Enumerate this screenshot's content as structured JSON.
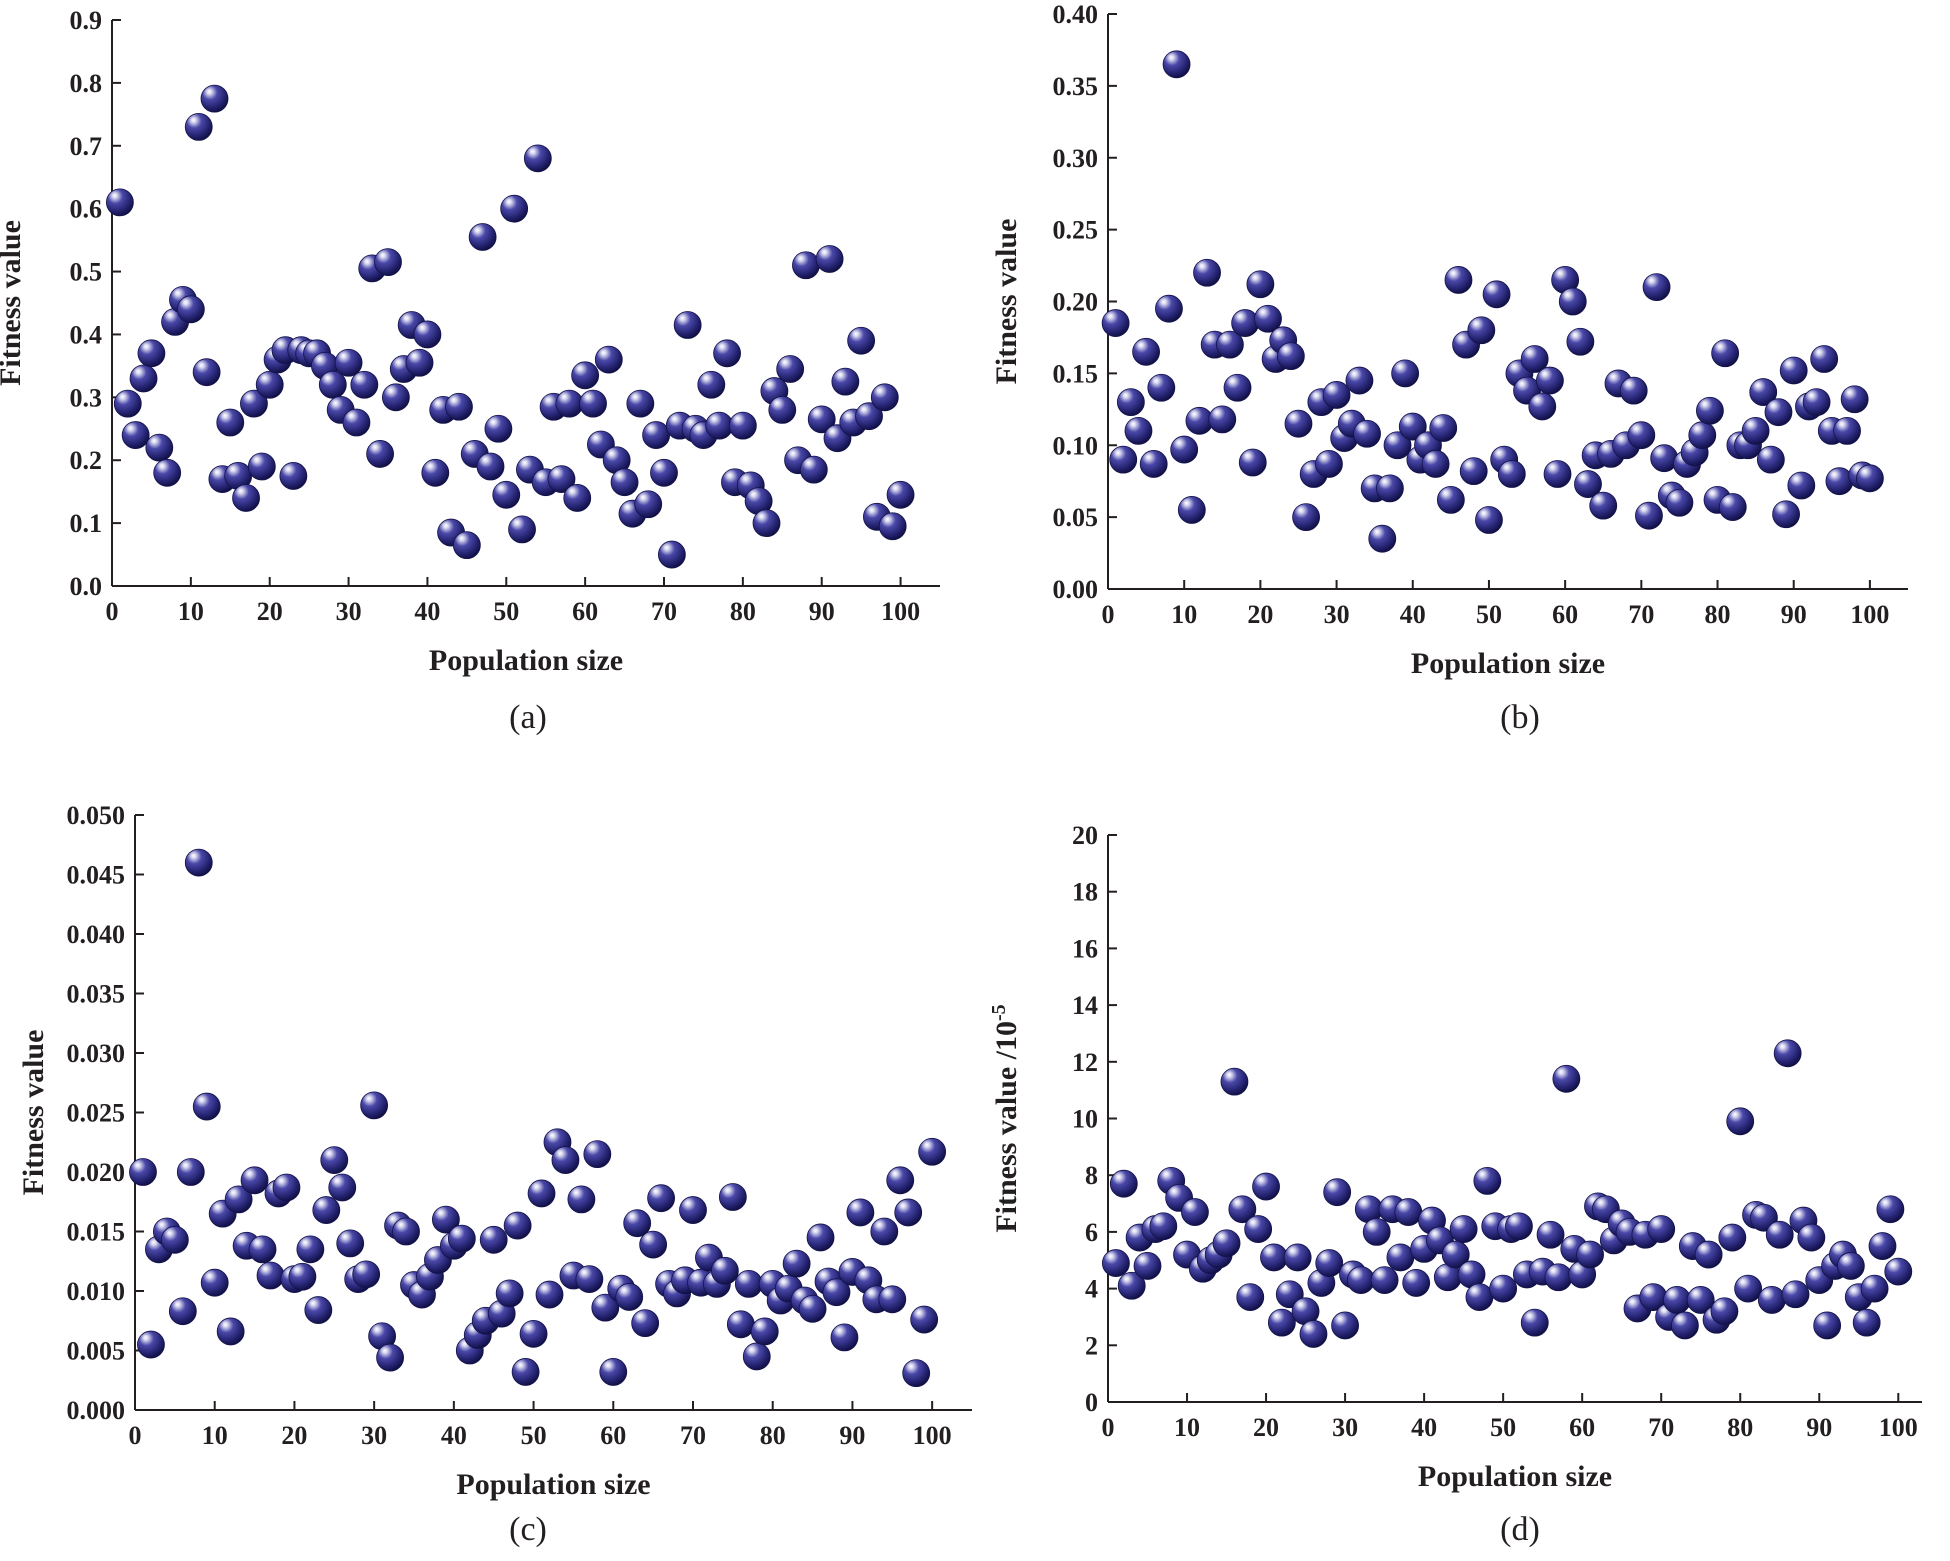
{
  "colors": {
    "marker": "#2b2a7a",
    "marker_highlight": "#ffffff",
    "axis": "#231f20"
  },
  "chart_data": [
    {
      "type": "scatter",
      "panel": "(a)",
      "xlabel": "Population size",
      "ylabel": "Fitness value",
      "xlim": [
        0,
        105
      ],
      "ylim": [
        0,
        0.9
      ],
      "xticks": [
        "0",
        "10",
        "20",
        "30",
        "40",
        "50",
        "60",
        "70",
        "80",
        "90",
        "100"
      ],
      "yticks": [
        "0.0",
        "0.1",
        "0.2",
        "0.3",
        "0.4",
        "0.5",
        "0.6",
        "0.7",
        "0.8",
        "0.9"
      ],
      "grid": false,
      "x": [
        1,
        2,
        3,
        4,
        5,
        6,
        7,
        8,
        9,
        10,
        11,
        12,
        13,
        14,
        15,
        16,
        17,
        18,
        19,
        20,
        21,
        22,
        23,
        24,
        25,
        26,
        27,
        28,
        29,
        30,
        31,
        32,
        33,
        34,
        35,
        36,
        37,
        38,
        39,
        40,
        41,
        42,
        43,
        44,
        45,
        46,
        47,
        48,
        49,
        50,
        51,
        52,
        53,
        54,
        55,
        56,
        57,
        58,
        59,
        60,
        61,
        62,
        63,
        64,
        65,
        66,
        67,
        68,
        69,
        70,
        71,
        72,
        73,
        74,
        75,
        76,
        77,
        78,
        79,
        80,
        81,
        82,
        83,
        84,
        85,
        86,
        87,
        88,
        89,
        90,
        91,
        92,
        93,
        94,
        95,
        96,
        97,
        98,
        99,
        100
      ],
      "y": [
        0.61,
        0.29,
        0.24,
        0.33,
        0.37,
        0.22,
        0.18,
        0.42,
        0.455,
        0.44,
        0.73,
        0.34,
        0.775,
        0.17,
        0.26,
        0.175,
        0.14,
        0.29,
        0.19,
        0.32,
        0.36,
        0.375,
        0.175,
        0.375,
        0.37,
        0.37,
        0.35,
        0.32,
        0.28,
        0.355,
        0.26,
        0.32,
        0.505,
        0.21,
        0.515,
        0.3,
        0.345,
        0.415,
        0.355,
        0.4,
        0.18,
        0.28,
        0.085,
        0.285,
        0.065,
        0.21,
        0.555,
        0.19,
        0.25,
        0.145,
        0.6,
        0.09,
        0.185,
        0.68,
        0.165,
        0.285,
        0.17,
        0.29,
        0.14,
        0.335,
        0.29,
        0.225,
        0.36,
        0.2,
        0.165,
        0.115,
        0.29,
        0.13,
        0.24,
        0.18,
        0.05,
        0.255,
        0.415,
        0.25,
        0.24,
        0.32,
        0.255,
        0.37,
        0.165,
        0.255,
        0.16,
        0.135,
        0.1,
        0.31,
        0.28,
        0.345,
        0.2,
        0.51,
        0.185,
        0.265,
        0.52,
        0.235,
        0.325,
        0.26,
        0.39,
        0.27,
        0.11,
        0.3,
        0.095,
        0.145
      ]
    },
    {
      "type": "scatter",
      "panel": "(b)",
      "xlabel": "Population size",
      "ylabel": "Fitness value",
      "xlim": [
        0,
        105
      ],
      "ylim": [
        0,
        0.4
      ],
      "xticks": [
        "0",
        "10",
        "20",
        "30",
        "40",
        "50",
        "60",
        "70",
        "80",
        "90",
        "100"
      ],
      "yticks": [
        "0.00",
        "0.05",
        "0.10",
        "0.15",
        "0.20",
        "0.25",
        "0.30",
        "0.35",
        "0.40"
      ],
      "grid": false,
      "x": [
        1,
        2,
        3,
        4,
        5,
        6,
        7,
        8,
        9,
        10,
        11,
        12,
        13,
        14,
        15,
        16,
        17,
        18,
        19,
        20,
        21,
        22,
        23,
        24,
        25,
        26,
        27,
        28,
        29,
        30,
        31,
        32,
        33,
        34,
        35,
        36,
        37,
        38,
        39,
        40,
        41,
        42,
        43,
        44,
        45,
        46,
        47,
        48,
        49,
        50,
        51,
        52,
        53,
        54,
        55,
        56,
        57,
        58,
        59,
        60,
        61,
        62,
        63,
        64,
        65,
        66,
        67,
        68,
        69,
        70,
        71,
        72,
        73,
        74,
        75,
        76,
        77,
        78,
        79,
        80,
        81,
        82,
        83,
        84,
        85,
        86,
        87,
        88,
        89,
        90,
        91,
        92,
        93,
        94,
        95,
        96,
        97,
        98,
        99,
        100
      ],
      "y": [
        0.185,
        0.09,
        0.13,
        0.11,
        0.165,
        0.087,
        0.14,
        0.195,
        0.365,
        0.097,
        0.055,
        0.117,
        0.22,
        0.17,
        0.118,
        0.17,
        0.14,
        0.185,
        0.088,
        0.212,
        0.188,
        0.16,
        0.173,
        0.162,
        0.115,
        0.05,
        0.08,
        0.13,
        0.087,
        0.135,
        0.105,
        0.115,
        0.145,
        0.108,
        0.07,
        0.035,
        0.07,
        0.1,
        0.15,
        0.113,
        0.09,
        0.1,
        0.087,
        0.112,
        0.062,
        0.215,
        0.17,
        0.082,
        0.18,
        0.048,
        0.205,
        0.09,
        0.08,
        0.15,
        0.138,
        0.16,
        0.127,
        0.145,
        0.08,
        0.215,
        0.2,
        0.172,
        0.073,
        0.093,
        0.058,
        0.094,
        0.143,
        0.1,
        0.138,
        0.107,
        0.051,
        0.21,
        0.091,
        0.065,
        0.06,
        0.087,
        0.095,
        0.107,
        0.124,
        0.062,
        0.164,
        0.057,
        0.1,
        0.1,
        0.11,
        0.137,
        0.09,
        0.123,
        0.052,
        0.152,
        0.072,
        0.127,
        0.13,
        0.16,
        0.11,
        0.075,
        0.11,
        0.132,
        0.079,
        0.077
      ]
    },
    {
      "type": "scatter",
      "panel": "(c)",
      "xlabel": "Population size",
      "ylabel": "Fitness value",
      "xlim": [
        0,
        105
      ],
      "ylim": [
        0,
        0.05
      ],
      "xticks": [
        "0",
        "10",
        "20",
        "30",
        "40",
        "50",
        "60",
        "70",
        "80",
        "90",
        "100"
      ],
      "yticks": [
        "0.000",
        "0.005",
        "0.010",
        "0.015",
        "0.020",
        "0.025",
        "0.030",
        "0.035",
        "0.040",
        "0.045",
        "0.050"
      ],
      "grid": false,
      "x": [
        1,
        2,
        3,
        4,
        5,
        6,
        7,
        8,
        9,
        10,
        11,
        12,
        13,
        14,
        15,
        16,
        17,
        18,
        19,
        20,
        21,
        22,
        23,
        24,
        25,
        26,
        27,
        28,
        29,
        30,
        31,
        32,
        33,
        34,
        35,
        36,
        37,
        38,
        39,
        40,
        41,
        42,
        43,
        44,
        45,
        46,
        47,
        48,
        49,
        50,
        51,
        52,
        53,
        54,
        55,
        56,
        57,
        58,
        59,
        60,
        61,
        62,
        63,
        64,
        65,
        66,
        67,
        68,
        69,
        70,
        71,
        72,
        73,
        74,
        75,
        76,
        77,
        78,
        79,
        80,
        81,
        82,
        83,
        84,
        85,
        86,
        87,
        88,
        89,
        90,
        91,
        92,
        93,
        94,
        95,
        96,
        97,
        98,
        99,
        100
      ],
      "y": [
        0.02,
        0.0055,
        0.0135,
        0.015,
        0.0143,
        0.0083,
        0.02,
        0.046,
        0.0255,
        0.0107,
        0.0165,
        0.0066,
        0.0177,
        0.0138,
        0.0193,
        0.0135,
        0.0113,
        0.0182,
        0.0187,
        0.011,
        0.0112,
        0.0135,
        0.0084,
        0.0168,
        0.021,
        0.0187,
        0.014,
        0.011,
        0.0114,
        0.0256,
        0.0062,
        0.0044,
        0.0155,
        0.015,
        0.0105,
        0.0097,
        0.0112,
        0.0126,
        0.016,
        0.0138,
        0.0144,
        0.005,
        0.0063,
        0.0075,
        0.0143,
        0.0081,
        0.0098,
        0.0155,
        0.0032,
        0.0064,
        0.0182,
        0.0097,
        0.0225,
        0.021,
        0.0113,
        0.0177,
        0.011,
        0.0215,
        0.0086,
        0.0032,
        0.0102,
        0.0095,
        0.0157,
        0.0073,
        0.0139,
        0.0178,
        0.0106,
        0.0098,
        0.0109,
        0.0168,
        0.0107,
        0.0128,
        0.0106,
        0.0117,
        0.0179,
        0.0072,
        0.0106,
        0.0045,
        0.0066,
        0.0106,
        0.0092,
        0.0102,
        0.0123,
        0.0092,
        0.0085,
        0.0145,
        0.0108,
        0.0099,
        0.0061,
        0.0116,
        0.0166,
        0.0109,
        0.0093,
        0.015,
        0.0093,
        0.0193,
        0.0166,
        0.0031,
        0.0076,
        0.0217
      ]
    },
    {
      "type": "scatter",
      "panel": "(d)",
      "xlabel": "Population size",
      "ylabel": "Fitness value /10",
      "ylabel_superscript": "-5",
      "xlim": [
        0,
        103
      ],
      "ylim": [
        0,
        20
      ],
      "xticks": [
        "0",
        "10",
        "20",
        "30",
        "40",
        "50",
        "60",
        "70",
        "80",
        "90",
        "100"
      ],
      "yticks": [
        "0",
        "2",
        "4",
        "6",
        "8",
        "10",
        "12",
        "14",
        "16",
        "18",
        "20"
      ],
      "grid": false,
      "x": [
        1,
        2,
        3,
        4,
        5,
        6,
        7,
        8,
        9,
        10,
        11,
        12,
        13,
        14,
        15,
        16,
        17,
        18,
        19,
        20,
        21,
        22,
        23,
        24,
        25,
        26,
        27,
        28,
        29,
        30,
        31,
        32,
        33,
        34,
        35,
        36,
        37,
        38,
        39,
        40,
        41,
        42,
        43,
        44,
        45,
        46,
        47,
        48,
        49,
        50,
        51,
        52,
        53,
        54,
        55,
        56,
        57,
        58,
        59,
        60,
        61,
        62,
        63,
        64,
        65,
        66,
        67,
        68,
        69,
        70,
        71,
        72,
        73,
        74,
        75,
        76,
        77,
        78,
        79,
        80,
        81,
        82,
        83,
        84,
        85,
        86,
        87,
        88,
        89,
        90,
        91,
        92,
        93,
        94,
        95,
        96,
        97,
        98,
        99,
        100
      ],
      "y": [
        4.9,
        7.7,
        4.1,
        5.8,
        4.8,
        6.1,
        6.2,
        7.8,
        7.2,
        5.2,
        6.7,
        4.7,
        5.0,
        5.2,
        5.6,
        11.3,
        6.8,
        3.7,
        6.1,
        7.6,
        5.1,
        2.8,
        3.8,
        5.1,
        3.2,
        2.4,
        4.2,
        4.9,
        7.4,
        2.7,
        4.5,
        4.3,
        6.8,
        6.0,
        4.3,
        6.8,
        5.1,
        6.7,
        4.2,
        5.4,
        6.4,
        5.7,
        4.4,
        5.2,
        6.1,
        4.5,
        3.7,
        7.8,
        6.2,
        4.0,
        6.1,
        6.2,
        4.5,
        2.8,
        4.6,
        5.9,
        4.4,
        11.4,
        5.4,
        4.5,
        5.2,
        6.9,
        6.8,
        5.7,
        6.3,
        6.0,
        3.3,
        5.9,
        3.7,
        6.1,
        3.0,
        3.6,
        2.7,
        5.5,
        3.6,
        5.2,
        2.9,
        3.2,
        5.8,
        9.9,
        4.0,
        6.6,
        6.5,
        3.6,
        5.9,
        12.3,
        3.8,
        6.4,
        5.8,
        4.3,
        2.7,
        4.8,
        5.2,
        4.8,
        3.7,
        2.8,
        4.0,
        5.5,
        6.8,
        4.6
      ]
    }
  ]
}
